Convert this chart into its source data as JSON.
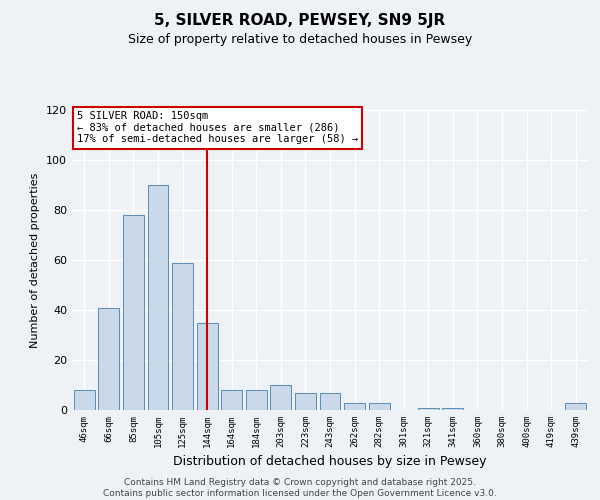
{
  "title": "5, SILVER ROAD, PEWSEY, SN9 5JR",
  "subtitle": "Size of property relative to detached houses in Pewsey",
  "xlabel": "Distribution of detached houses by size in Pewsey",
  "ylabel": "Number of detached properties",
  "bar_labels": [
    "46sqm",
    "66sqm",
    "85sqm",
    "105sqm",
    "125sqm",
    "144sqm",
    "164sqm",
    "184sqm",
    "203sqm",
    "223sqm",
    "243sqm",
    "262sqm",
    "282sqm",
    "301sqm",
    "321sqm",
    "341sqm",
    "360sqm",
    "380sqm",
    "400sqm",
    "419sqm",
    "439sqm"
  ],
  "bar_values": [
    8,
    41,
    78,
    90,
    59,
    35,
    8,
    8,
    10,
    7,
    7,
    3,
    3,
    0,
    1,
    1,
    0,
    0,
    0,
    0,
    3
  ],
  "bar_color": "#c9d9ea",
  "bar_edge_color": "#5b8db8",
  "vline_index": 5.5,
  "vline_color": "#cc0000",
  "annotation_line1": "5 SILVER ROAD: 150sqm",
  "annotation_line2": "← 83% of detached houses are smaller (286)",
  "annotation_line3": "17% of semi-detached houses are larger (58) →",
  "ylim": [
    0,
    120
  ],
  "yticks": [
    0,
    20,
    40,
    60,
    80,
    100,
    120
  ],
  "bg_color": "#eef2f7",
  "footer_line1": "Contains HM Land Registry data © Crown copyright and database right 2025.",
  "footer_line2": "Contains public sector information licensed under the Open Government Licence v3.0."
}
